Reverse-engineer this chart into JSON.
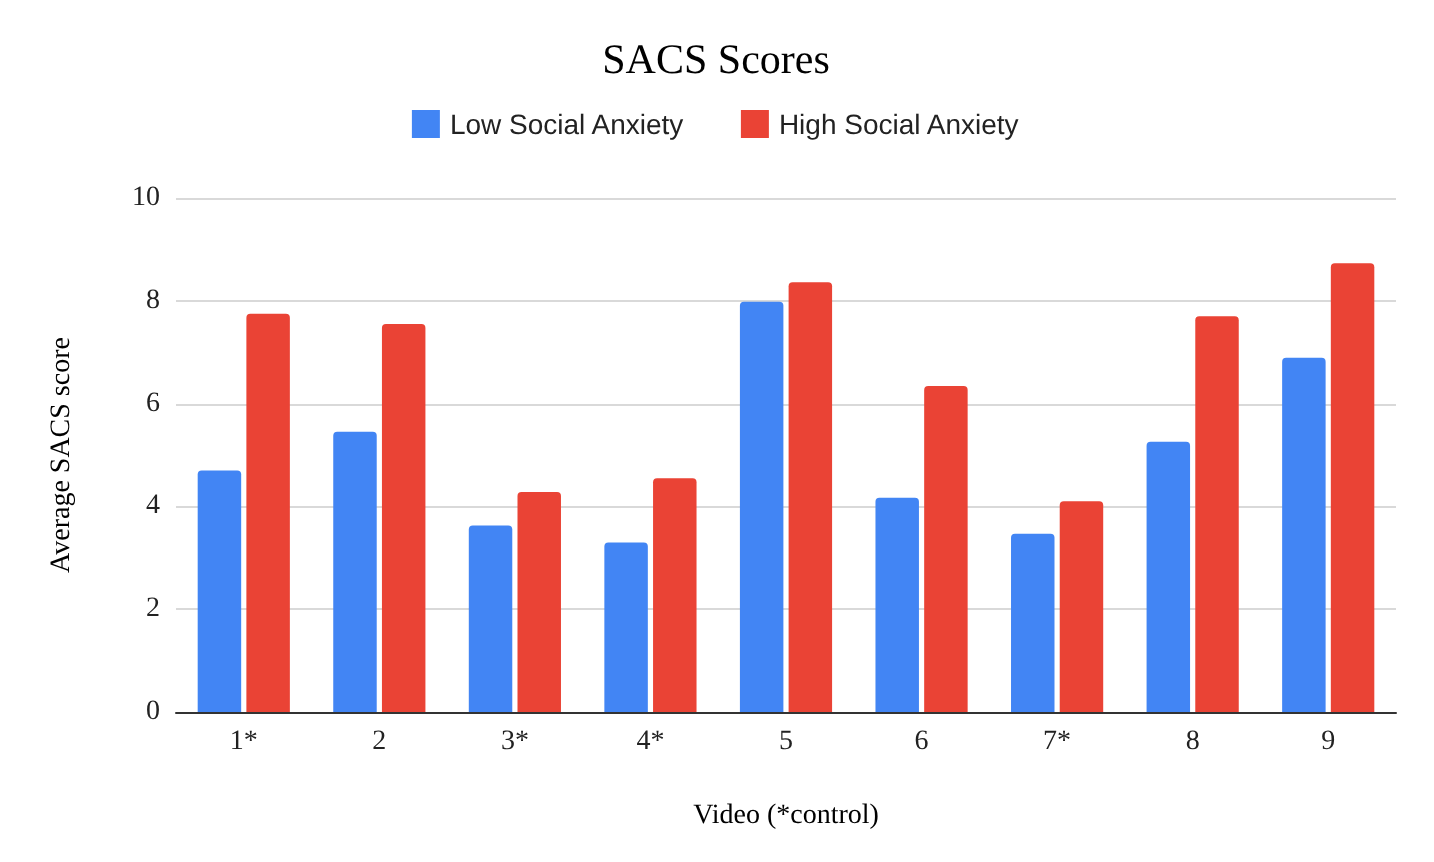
{
  "chart_data": {
    "type": "bar",
    "title": "SACS Scores",
    "xlabel": "Video (*control)",
    "ylabel": "Average SACS score",
    "categories": [
      "1*",
      "2",
      "3*",
      "4*",
      "5",
      "6",
      "7*",
      "8",
      "9"
    ],
    "series": [
      {
        "name": "Low Social Anxiety",
        "color": "#4285f4",
        "values": [
          4.7,
          5.45,
          3.63,
          3.3,
          7.98,
          4.17,
          3.47,
          5.26,
          6.89
        ]
      },
      {
        "name": "High Social Anxiety",
        "color": "#ea4335",
        "values": [
          7.75,
          7.55,
          4.28,
          4.55,
          8.36,
          6.34,
          4.1,
          7.7,
          8.73
        ]
      }
    ],
    "ylim": [
      0,
      10
    ],
    "yticks": [
      0,
      2,
      4,
      6,
      8,
      10
    ],
    "grid": "y",
    "legend": "top"
  }
}
